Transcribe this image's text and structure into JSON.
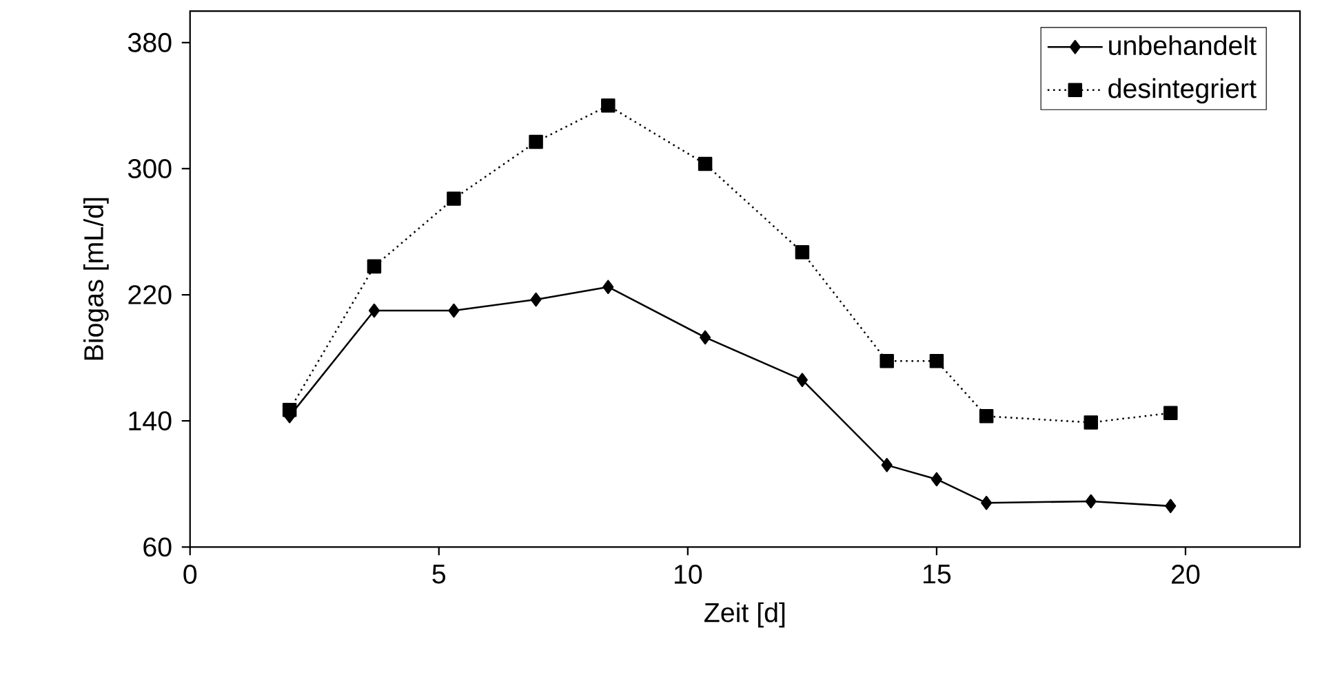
{
  "chart_data": {
    "type": "line",
    "xlabel": "Zeit [d]",
    "ylabel": "Biogas [mL/d]",
    "xlim": [
      0,
      22.3
    ],
    "ylim": [
      60,
      400
    ],
    "xticks": [
      0,
      5,
      10,
      15,
      20
    ],
    "yticks": [
      60,
      140,
      220,
      300,
      380
    ],
    "grid": false,
    "legend": "top right",
    "series": [
      {
        "name": "unbehandelt",
        "color": "#000000",
        "marker": "diamond",
        "line_style": "solid",
        "x": [
          2,
          3.7,
          5.3,
          6.95,
          8.4,
          10.35,
          12.3,
          14,
          15,
          16,
          18.1,
          19.7
        ],
        "values": [
          143,
          210,
          210,
          217,
          225,
          193,
          166,
          112,
          103,
          88,
          89,
          86
        ]
      },
      {
        "name": "desintegriert",
        "color": "#000000",
        "marker": "square",
        "line_style": "dotted",
        "x": [
          2,
          3.7,
          5.3,
          6.95,
          8.4,
          10.35,
          12.3,
          14,
          15,
          16,
          18.1,
          19.7
        ],
        "values": [
          147,
          238,
          281,
          317,
          340,
          303,
          247,
          178,
          178,
          143,
          139,
          145
        ]
      }
    ]
  }
}
